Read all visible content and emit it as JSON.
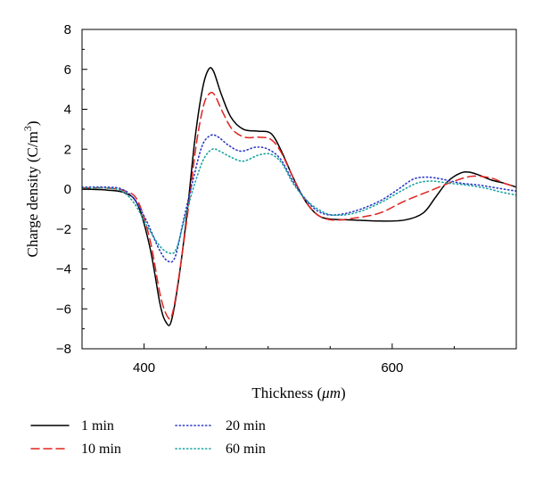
{
  "chart_data": {
    "type": "line",
    "xlabel_main": "Thickness (",
    "xlabel_unit": "μm",
    "xlabel_close": ")",
    "ylabel_main": "Charge density (C/m",
    "ylabel_sup": "3",
    "ylabel_close": ")",
    "xlim": [
      350,
      700
    ],
    "ylim": [
      -8,
      8
    ],
    "x_ticks": [
      400,
      600
    ],
    "y_ticks": [
      -8,
      -6,
      -4,
      -2,
      0,
      2,
      4,
      6,
      8
    ],
    "grid": false,
    "legend_position": "below",
    "series": [
      {
        "name": "1 min",
        "color": "#000000",
        "dash": "solid",
        "points": [
          [
            350,
            0
          ],
          [
            370,
            -0.05
          ],
          [
            385,
            -0.2
          ],
          [
            395,
            -0.8
          ],
          [
            405,
            -3
          ],
          [
            413,
            -5.8
          ],
          [
            418,
            -6.7
          ],
          [
            422,
            -6.6
          ],
          [
            428,
            -4.5
          ],
          [
            435,
            -1
          ],
          [
            441,
            2.5
          ],
          [
            447,
            5
          ],
          [
            452,
            6
          ],
          [
            456,
            5.9
          ],
          [
            462,
            4.8
          ],
          [
            470,
            3.6
          ],
          [
            480,
            3.0
          ],
          [
            492,
            2.9
          ],
          [
            502,
            2.8
          ],
          [
            510,
            2.0
          ],
          [
            520,
            0.6
          ],
          [
            530,
            -0.6
          ],
          [
            540,
            -1.3
          ],
          [
            550,
            -1.5
          ],
          [
            570,
            -1.55
          ],
          [
            590,
            -1.6
          ],
          [
            610,
            -1.55
          ],
          [
            625,
            -1.2
          ],
          [
            635,
            -0.4
          ],
          [
            645,
            0.4
          ],
          [
            655,
            0.8
          ],
          [
            662,
            0.85
          ],
          [
            670,
            0.7
          ],
          [
            680,
            0.45
          ],
          [
            690,
            0.3
          ],
          [
            700,
            0.1
          ]
        ]
      },
      {
        "name": "10 min",
        "color": "#e0231e",
        "dash": "dashed",
        "points": [
          [
            350,
            0.05
          ],
          [
            370,
            0.05
          ],
          [
            385,
            -0.1
          ],
          [
            395,
            -0.6
          ],
          [
            405,
            -2.6
          ],
          [
            413,
            -5.3
          ],
          [
            419,
            -6.4
          ],
          [
            423,
            -6.2
          ],
          [
            429,
            -4
          ],
          [
            436,
            -0.8
          ],
          [
            442,
            2.2
          ],
          [
            448,
            4.2
          ],
          [
            453,
            4.8
          ],
          [
            457,
            4.7
          ],
          [
            463,
            3.9
          ],
          [
            471,
            3.0
          ],
          [
            481,
            2.6
          ],
          [
            492,
            2.6
          ],
          [
            502,
            2.5
          ],
          [
            510,
            1.9
          ],
          [
            520,
            0.6
          ],
          [
            530,
            -0.6
          ],
          [
            540,
            -1.3
          ],
          [
            552,
            -1.55
          ],
          [
            570,
            -1.45
          ],
          [
            590,
            -1.2
          ],
          [
            610,
            -0.6
          ],
          [
            630,
            -0.1
          ],
          [
            650,
            0.4
          ],
          [
            665,
            0.65
          ],
          [
            680,
            0.55
          ],
          [
            690,
            0.3
          ],
          [
            700,
            0.1
          ]
        ]
      },
      {
        "name": "20 min",
        "color": "#2b36c8",
        "dash": "dotted",
        "points": [
          [
            350,
            0.1
          ],
          [
            370,
            0.1
          ],
          [
            382,
            0
          ],
          [
            392,
            -0.5
          ],
          [
            402,
            -1.6
          ],
          [
            412,
            -3
          ],
          [
            419,
            -3.6
          ],
          [
            425,
            -3.4
          ],
          [
            432,
            -1.5
          ],
          [
            440,
            0.6
          ],
          [
            447,
            2.2
          ],
          [
            454,
            2.7
          ],
          [
            460,
            2.6
          ],
          [
            468,
            2.2
          ],
          [
            478,
            1.9
          ],
          [
            490,
            2.1
          ],
          [
            500,
            2.0
          ],
          [
            510,
            1.5
          ],
          [
            520,
            0.4
          ],
          [
            530,
            -0.5
          ],
          [
            540,
            -1.1
          ],
          [
            552,
            -1.3
          ],
          [
            570,
            -1.1
          ],
          [
            590,
            -0.6
          ],
          [
            605,
            0
          ],
          [
            617,
            0.5
          ],
          [
            628,
            0.6
          ],
          [
            640,
            0.5
          ],
          [
            655,
            0.3
          ],
          [
            670,
            0.2
          ],
          [
            685,
            0.05
          ],
          [
            700,
            -0.1
          ]
        ]
      },
      {
        "name": "60 min",
        "color": "#17a3a0",
        "dash": "dotted",
        "points": [
          [
            350,
            0.05
          ],
          [
            370,
            0.05
          ],
          [
            382,
            -0.1
          ],
          [
            392,
            -0.7
          ],
          [
            402,
            -1.8
          ],
          [
            412,
            -2.8
          ],
          [
            420,
            -3.2
          ],
          [
            426,
            -3.0
          ],
          [
            433,
            -1.4
          ],
          [
            441,
            0.3
          ],
          [
            448,
            1.5
          ],
          [
            455,
            2.0
          ],
          [
            461,
            1.9
          ],
          [
            470,
            1.6
          ],
          [
            480,
            1.4
          ],
          [
            492,
            1.7
          ],
          [
            502,
            1.75
          ],
          [
            511,
            1.3
          ],
          [
            520,
            0.3
          ],
          [
            530,
            -0.5
          ],
          [
            540,
            -1.0
          ],
          [
            552,
            -1.3
          ],
          [
            570,
            -1.2
          ],
          [
            590,
            -0.7
          ],
          [
            607,
            -0.1
          ],
          [
            620,
            0.3
          ],
          [
            632,
            0.4
          ],
          [
            645,
            0.3
          ],
          [
            660,
            0.2
          ],
          [
            675,
            0.05
          ],
          [
            688,
            -0.15
          ],
          [
            700,
            -0.3
          ]
        ]
      }
    ]
  }
}
